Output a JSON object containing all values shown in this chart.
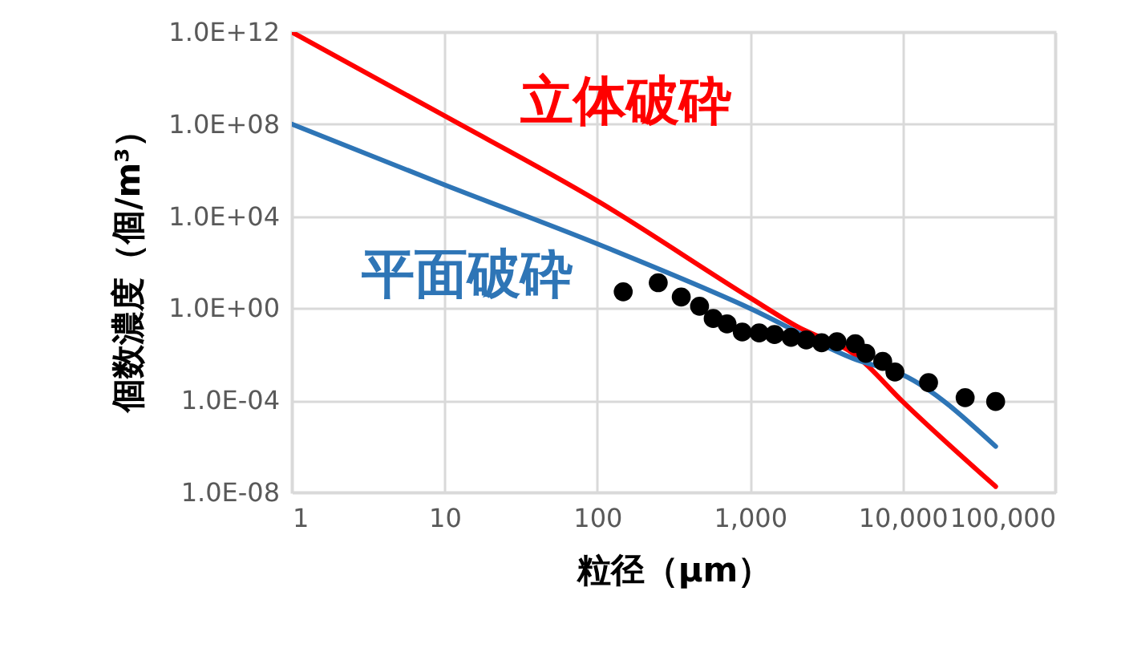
{
  "chart_data": {
    "type": "line",
    "xlabel": "粒径（μm）",
    "ylabel": "個数濃度（個/m³）",
    "log": "xy",
    "grid": true,
    "legend": false,
    "marker": "none",
    "xlim": [
      1,
      100000
    ],
    "xticks": [
      1,
      10,
      100,
      {
        "value": 1000,
        "label": "1,000"
      },
      {
        "value": 10000,
        "label": "10,000"
      },
      {
        "value": 100000,
        "label": "100,000"
      }
    ],
    "ylim": [
      1e-08,
      1000000000000.0
    ],
    "yticks": [
      {
        "value": 1e-08,
        "label": "1.0E-08"
      },
      {
        "value": 0.0001,
        "label": "1.0E-04"
      },
      {
        "value": 1,
        "label": "1.0E+00"
      },
      {
        "value": 10000,
        "label": "1.0E+04"
      },
      {
        "value": 100000000,
        "label": "1.0E+08"
      },
      {
        "value": 1000000000000,
        "label": "1.0E+12"
      }
    ],
    "series": [
      {
        "name": "立体破砕",
        "color": "#ff0000",
        "x": [
          1,
          10,
          100,
          1000,
          2040,
          5000,
          10000,
          40700
        ],
        "values": [
          1000000000000.0,
          230000000.0,
          47000,
          2.9,
          0.16,
          0.0085,
          8.9e-05,
          1.8e-08
        ]
      },
      {
        "name": "平面破砕",
        "color": "#2e75b6",
        "x": [
          1,
          10,
          100,
          1000,
          5000,
          10000,
          40700
        ],
        "values": [
          100000000.0,
          230000,
          630,
          1,
          0.0058,
          0.0013,
          1e-06
        ]
      },
      {
        "type": "scatter",
        "marker": "circle",
        "color": "#000000",
        "x": [
          148,
          251,
          355,
          468,
          575,
          708,
          891,
          1150,
          1450,
          1860,
          2340,
          2950,
          3720,
          4900,
          5750,
          7410,
          8910,
          14800,
          25700,
          40700
        ],
        "values": [
          5.2,
          12.9,
          3.1,
          1.23,
          0.36,
          0.21,
          0.093,
          0.085,
          0.072,
          0.055,
          0.042,
          0.032,
          0.035,
          0.029,
          0.011,
          0.0049,
          0.0017,
          0.00059,
          0.00013,
          8.9e-05
        ]
      }
    ]
  }
}
